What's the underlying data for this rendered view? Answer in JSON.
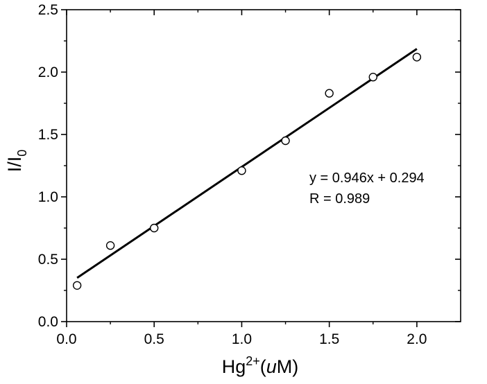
{
  "chart_data": {
    "type": "scatter",
    "xlabel": {
      "base": "Hg",
      "sup": "2+",
      "open": "(",
      "unit_italic": "u",
      "unit_rest": "M)"
    },
    "ylabel": {
      "base": "I/I",
      "sub": "0"
    },
    "xlim": [
      0.0,
      2.25
    ],
    "ylim": [
      0.0,
      2.5
    ],
    "x_ticks": [
      0.0,
      0.5,
      1.0,
      1.5,
      2.0
    ],
    "x_tick_labels": [
      "0.0",
      "0.5",
      "1.0",
      "1.5",
      "2.0"
    ],
    "y_ticks": [
      0.0,
      0.5,
      1.0,
      1.5,
      2.0,
      2.5
    ],
    "y_tick_labels": [
      "0.0",
      "0.5",
      "1.0",
      "1.5",
      "2.0",
      "2.5"
    ],
    "x": [
      0.06,
      0.25,
      0.5,
      1.0,
      1.25,
      1.5,
      1.75,
      2.0
    ],
    "y": [
      0.29,
      0.61,
      0.75,
      1.21,
      1.45,
      1.83,
      1.96,
      2.12
    ],
    "fit": {
      "slope": 0.946,
      "intercept": 0.294,
      "x_range": [
        0.06,
        2.0
      ]
    },
    "annotations": [
      "y = 0.946x + 0.294",
      "R = 0.989"
    ],
    "grid": false,
    "marker": "open-circle",
    "colors": {
      "axis": "#000000",
      "marker": "#000000",
      "fit_line": "#000000"
    }
  }
}
